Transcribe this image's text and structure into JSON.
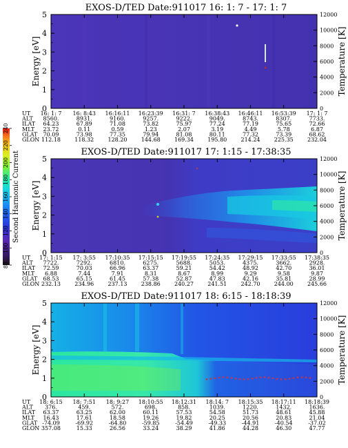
{
  "colorbar": {
    "label": "Second Harmonic Current",
    "ticks": [
      "80",
      "100",
      "120",
      "140",
      "160",
      "180",
      "200",
      "220",
      "240"
    ],
    "colors": [
      "#1a1418",
      "#3a1a6a",
      "#5a2ab0",
      "#2b35d8",
      "#1f68f0",
      "#1aa8f0",
      "#19d8dc",
      "#2ee79a",
      "#7ff03c",
      "#d8f020",
      "#f2c21c",
      "#f37a1c",
      "#e81a14"
    ]
  },
  "panels": [
    {
      "title": "EXOS-D/TED   Date:911017  16: 1: 7 - 17: 1: 7",
      "ylabel_left": "Energy [eV]",
      "ylabel_right": "Temperature [K]",
      "y_ticks": [
        "0",
        "1",
        "2",
        "3",
        "4",
        "5"
      ],
      "y2_ticks": [
        "0",
        "2000",
        "4000",
        "6000",
        "8000",
        "10000",
        "12000"
      ],
      "row_labels": [
        "UT",
        "ALT",
        "ILAT",
        "MLT",
        "GLAT",
        "GLON"
      ],
      "columns": [
        [
          "16: 1: 7",
          "8560.",
          "64.23",
          "23.72",
          "70.09",
          "112.18"
        ],
        [
          "16: 8:43",
          "8931.",
          "67.89",
          "0.11",
          "73.98",
          "118.32"
        ],
        [
          "16:16:11",
          "9160.",
          "71.08",
          "0.59",
          "77.35",
          "128.20"
        ],
        [
          "16:23:39",
          "9257.",
          "73.82",
          "1.23",
          "79.94",
          "144.68"
        ],
        [
          "16:31: 7",
          "9222.",
          "75.97",
          "2.07",
          "81.08",
          "169.34"
        ],
        [
          "16:38:43",
          "9049.",
          "77.24",
          "3.19",
          "80.11",
          "195.80"
        ],
        [
          "16:46:11",
          "8743.",
          "77.19",
          "4.49",
          "77.32",
          "214.24"
        ],
        [
          "16:53:39",
          "8307.",
          "75.65",
          "5.78",
          "73.39",
          "225.35"
        ],
        [
          "17: 1: 7",
          "7733.",
          "72.66",
          "6.87",
          "68.62",
          "232.04"
        ]
      ]
    },
    {
      "title": "EXOS-D/TED   Date:911017  17: 1:15 - 17:38:35",
      "ylabel_left": "Energy [eV]",
      "ylabel_right": "Temperature [K]",
      "y_ticks": [
        "0",
        "1",
        "2",
        "3",
        "4",
        "5"
      ],
      "y2_ticks": [
        "0",
        "2000",
        "4000",
        "6000",
        "8000",
        "10000",
        "12000"
      ],
      "row_labels": [
        "UT",
        "ALT",
        "ILAT",
        "MLT",
        "GLAT",
        "GLON"
      ],
      "columns": [
        [
          "17: 1:15",
          "7722.",
          "72.59",
          "6.88",
          "68.53",
          "232.13"
        ],
        [
          "17: 3:55",
          "7292.",
          "70.03",
          "7.44",
          "65.15",
          "234.96"
        ],
        [
          "17:10:35",
          "6810.",
          "66.96",
          "7.91",
          "61.45",
          "237.13"
        ],
        [
          "17:15:15",
          "6275.",
          "63.37",
          "8.31",
          "57.38",
          "238.86"
        ],
        [
          "17:19:55",
          "5688.",
          "59.21",
          "8.67",
          "52.87",
          "240.27"
        ],
        [
          "17:24:35",
          "5053.",
          "54.42",
          "8.99",
          "47.83",
          "241.51"
        ],
        [
          "17:29:15",
          "4375.",
          "48.92",
          "9.29",
          "42.16",
          "242.70"
        ],
        [
          "17:33:55",
          "3662.",
          "42.70",
          "9.58",
          "35.81",
          "244.00"
        ],
        [
          "17:38:35",
          "2928.",
          "36.01",
          "9.87",
          "28.99",
          "245.66"
        ]
      ]
    },
    {
      "title": "EXOS-D/TED   Date:911017  18: 6:15 - 18:18:39",
      "ylabel_left": "Energy [eV]",
      "ylabel_right": "Temperature [K]",
      "y_ticks": [
        "0",
        "1",
        "2",
        "3",
        "4",
        "5"
      ],
      "y2_ticks": [
        "0",
        "2000",
        "4000",
        "6000",
        "8000",
        "10000",
        "12000"
      ],
      "row_labels": [
        "UT",
        "ALT",
        "ILAT",
        "MLT",
        "GLAT",
        "GLON"
      ],
      "columns": [
        [
          "18: 6:15",
          "376.",
          "63.37",
          "16.43",
          "-74.09",
          "357.08"
        ],
        [
          "18: 7:51",
          "459.",
          "63.25",
          "17.61",
          "-69.92",
          "15.33"
        ],
        [
          "18: 9:27",
          "572.",
          "62.00",
          "18.58",
          "-64.80",
          "26.56"
        ],
        [
          "18:10:55",
          "698.",
          "60.11",
          "19.26",
          "-59.85",
          "33.24"
        ],
        [
          "18:12:31",
          "858.",
          "57.53",
          "19.82",
          "-54.49",
          "38.29"
        ],
        [
          "18:14: 7",
          "1039.",
          "54.58",
          "20.25",
          "-49.33",
          "41.86"
        ],
        [
          "18:15:35",
          "1220.",
          "51.73",
          "20.56",
          "-44.91",
          "44.28"
        ],
        [
          "18:17:11",
          "1432.",
          "48.61",
          "20.83",
          "-40.54",
          "46.30"
        ],
        [
          "18:18:39",
          "1636.",
          "45.88",
          "21.04",
          "-37.02",
          "47.77"
        ]
      ]
    }
  ],
  "chart_data": [
    {
      "type": "heatmap",
      "title": "EXOS-D/TED   Date:911017  16: 1: 7 - 17: 1: 7",
      "xlabel": "UT",
      "ylabel": "Energy [eV]",
      "y2label": "Temperature [K]",
      "x_ticks": [
        "16: 1: 7",
        "16: 8:43",
        "16:16:11",
        "16:23:39",
        "16:31: 7",
        "16:38:43",
        "16:46:11",
        "16:53:39",
        "17: 1: 7"
      ],
      "ylim": [
        0,
        5
      ],
      "y2lim": [
        0,
        12000
      ],
      "dominant_level": "≈110 (violet/blue)",
      "notes": "near-uniform low background; white marks near 16:46 (≈3.0–3.3 eV) and ≈16:43 (≈4.4 eV)"
    },
    {
      "type": "heatmap",
      "title": "EXOS-D/TED   Date:911017  17: 1:15 - 17:38:35",
      "xlabel": "UT",
      "ylabel": "Energy [eV]",
      "y2label": "Temperature [K]",
      "x_ticks": [
        "17: 1:15",
        "17: 3:55",
        "17:10:35",
        "17:15:15",
        "17:19:55",
        "17:24:35",
        "17:29:15",
        "17:33:55",
        "17:38:35"
      ],
      "ylim": [
        0,
        5
      ],
      "y2lim": [
        0,
        12000
      ],
      "notes": "enhancement band from ≈17:15 onward, ≈1.5–3 eV, strongest (cyan/green, ≈160–180) after 17:30"
    },
    {
      "type": "heatmap",
      "title": "EXOS-D/TED   Date:911017  18: 6:15 - 18:18:39",
      "xlabel": "UT",
      "ylabel": "Energy [eV]",
      "y2label": "Temperature [K]",
      "x_ticks": [
        "18: 6:15",
        "18: 7:51",
        "18: 9:27",
        "18:10:55",
        "18:12:31",
        "18:14: 7",
        "18:15:35",
        "18:17:11",
        "18:18:39"
      ],
      "ylim": [
        0,
        5
      ],
      "y2lim": [
        0,
        12000
      ],
      "notes": "strong low-energy signal (green/yellow ≈180–220) below ≈2.5 eV until ≈18:12, weaker blue afterwards; red dots ≈1.4 eV after 18:14"
    }
  ]
}
